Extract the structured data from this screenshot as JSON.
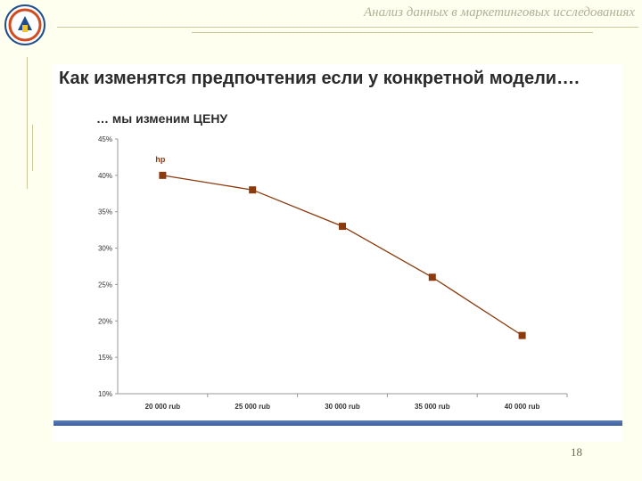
{
  "header": {
    "title": "Анализ данных в маркетинговых исследованиях"
  },
  "slide": {
    "title": "Как изменятся предпочтения если у конкретной модели….",
    "subtitle": "… мы изменим ЦЕНУ",
    "page_number": "18"
  },
  "colors": {
    "series": "#8b3a0e",
    "axis": "#999999",
    "footer_bar": "#4a6ea8"
  },
  "chart_data": {
    "type": "line",
    "categories": [
      "20 000 rub",
      "25 000 rub",
      "30 000 rub",
      "35 000 rub",
      "40 000 rub"
    ],
    "series": [
      {
        "name": "hp",
        "values": [
          40,
          38,
          33,
          26,
          18
        ]
      }
    ],
    "y_ticks": [
      "45%",
      "40%",
      "35%",
      "30%",
      "25%",
      "20%",
      "15%",
      "10%"
    ],
    "ylim": [
      10,
      45
    ],
    "grid": false,
    "legend": "top-left"
  }
}
